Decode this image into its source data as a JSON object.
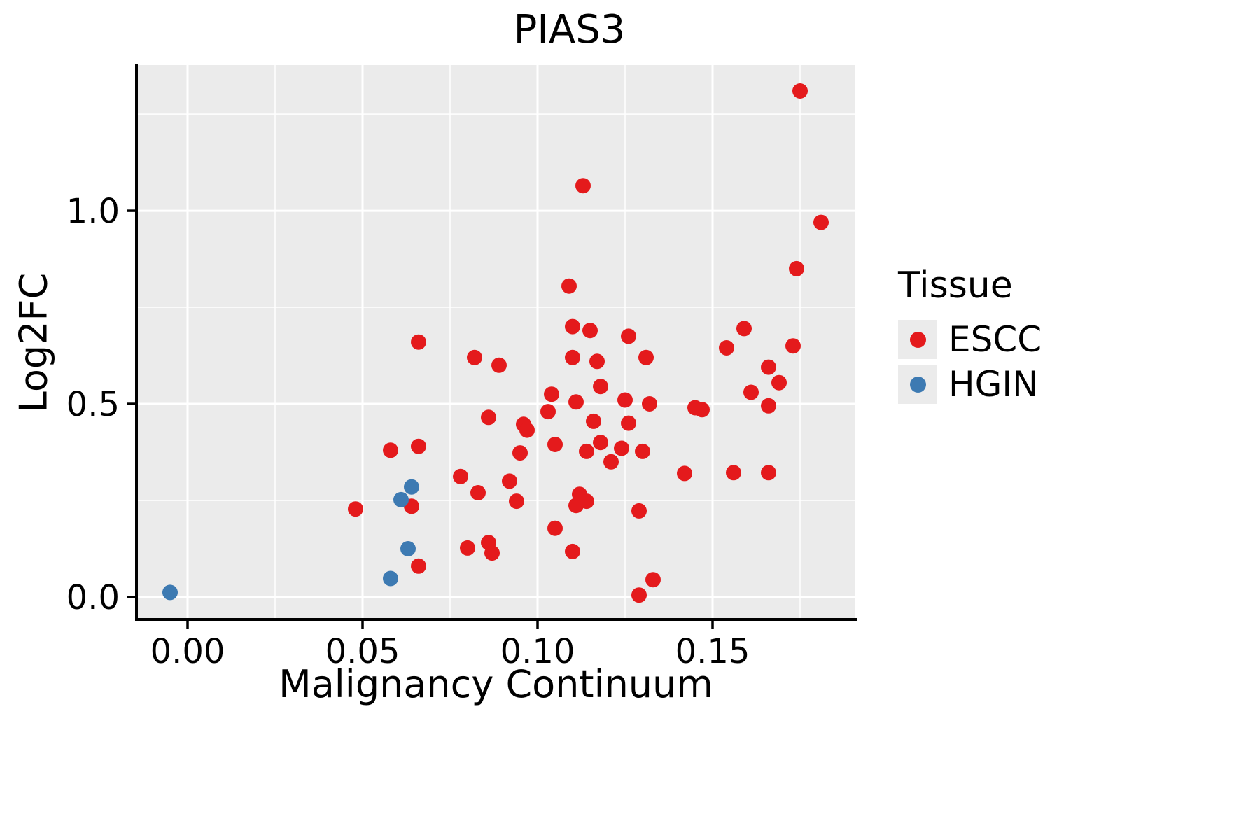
{
  "chart_data": {
    "type": "scatter",
    "title": "PIAS3",
    "xlabel": "Malignancy Continuum",
    "ylabel": "Log2FC",
    "xlim": [
      -0.0146,
      0.1908
    ],
    "ylim": [
      -0.058,
      1.377
    ],
    "grid": true,
    "panel_background": "#EBEBEB",
    "grid_color": "#FFFFFF",
    "axis_color": "#000000",
    "x_ticks": {
      "major": [
        0.0,
        0.05,
        0.1,
        0.15
      ],
      "labels": [
        "0.00",
        "0.05",
        "0.10",
        "0.15"
      ],
      "minor": [
        0.025,
        0.075,
        0.125,
        0.175
      ]
    },
    "y_ticks": {
      "major": [
        0.0,
        0.5,
        1.0
      ],
      "labels": [
        "0.0",
        "0.5",
        "1.0"
      ],
      "minor": [
        0.25,
        0.75,
        1.25
      ]
    },
    "legend": {
      "title": "Tissue",
      "position": "right",
      "items": [
        {
          "label": "ESCC",
          "color": "#E41A1C"
        },
        {
          "label": "HGIN",
          "color": "#3D7AB2"
        }
      ]
    },
    "series": [
      {
        "name": "ESCC",
        "color": "#E41A1C",
        "points": [
          [
            0.175,
            1.31
          ],
          [
            0.181,
            0.97
          ],
          [
            0.113,
            1.065
          ],
          [
            0.174,
            0.85
          ],
          [
            0.109,
            0.805
          ],
          [
            0.11,
            0.7
          ],
          [
            0.115,
            0.69
          ],
          [
            0.159,
            0.695
          ],
          [
            0.126,
            0.675
          ],
          [
            0.066,
            0.66
          ],
          [
            0.173,
            0.65
          ],
          [
            0.154,
            0.645
          ],
          [
            0.082,
            0.62
          ],
          [
            0.11,
            0.62
          ],
          [
            0.117,
            0.61
          ],
          [
            0.131,
            0.62
          ],
          [
            0.089,
            0.6
          ],
          [
            0.166,
            0.595
          ],
          [
            0.169,
            0.555
          ],
          [
            0.118,
            0.545
          ],
          [
            0.161,
            0.53
          ],
          [
            0.104,
            0.525
          ],
          [
            0.111,
            0.505
          ],
          [
            0.125,
            0.51
          ],
          [
            0.132,
            0.5
          ],
          [
            0.145,
            0.49
          ],
          [
            0.147,
            0.485
          ],
          [
            0.166,
            0.495
          ],
          [
            0.103,
            0.48
          ],
          [
            0.116,
            0.455
          ],
          [
            0.086,
            0.465
          ],
          [
            0.126,
            0.45
          ],
          [
            0.096,
            0.447
          ],
          [
            0.097,
            0.432
          ],
          [
            0.118,
            0.4
          ],
          [
            0.105,
            0.395
          ],
          [
            0.066,
            0.39
          ],
          [
            0.058,
            0.38
          ],
          [
            0.095,
            0.373
          ],
          [
            0.114,
            0.377
          ],
          [
            0.124,
            0.385
          ],
          [
            0.13,
            0.377
          ],
          [
            0.121,
            0.35
          ],
          [
            0.142,
            0.32
          ],
          [
            0.156,
            0.322
          ],
          [
            0.166,
            0.322
          ],
          [
            0.078,
            0.312
          ],
          [
            0.092,
            0.3
          ],
          [
            0.083,
            0.27
          ],
          [
            0.094,
            0.248
          ],
          [
            0.048,
            0.228
          ],
          [
            0.064,
            0.235
          ],
          [
            0.112,
            0.266
          ],
          [
            0.114,
            0.248
          ],
          [
            0.111,
            0.237
          ],
          [
            0.129,
            0.223
          ],
          [
            0.105,
            0.178
          ],
          [
            0.08,
            0.127
          ],
          [
            0.086,
            0.141
          ],
          [
            0.087,
            0.114
          ],
          [
            0.11,
            0.118
          ],
          [
            0.066,
            0.08
          ],
          [
            0.133,
            0.045
          ],
          [
            0.129,
            0.005
          ]
        ]
      },
      {
        "name": "HGIN",
        "color": "#3D7AB2",
        "points": [
          [
            -0.005,
            0.012
          ],
          [
            0.058,
            0.048
          ],
          [
            0.063,
            0.125
          ],
          [
            0.061,
            0.252
          ],
          [
            0.064,
            0.285
          ]
        ]
      }
    ]
  }
}
